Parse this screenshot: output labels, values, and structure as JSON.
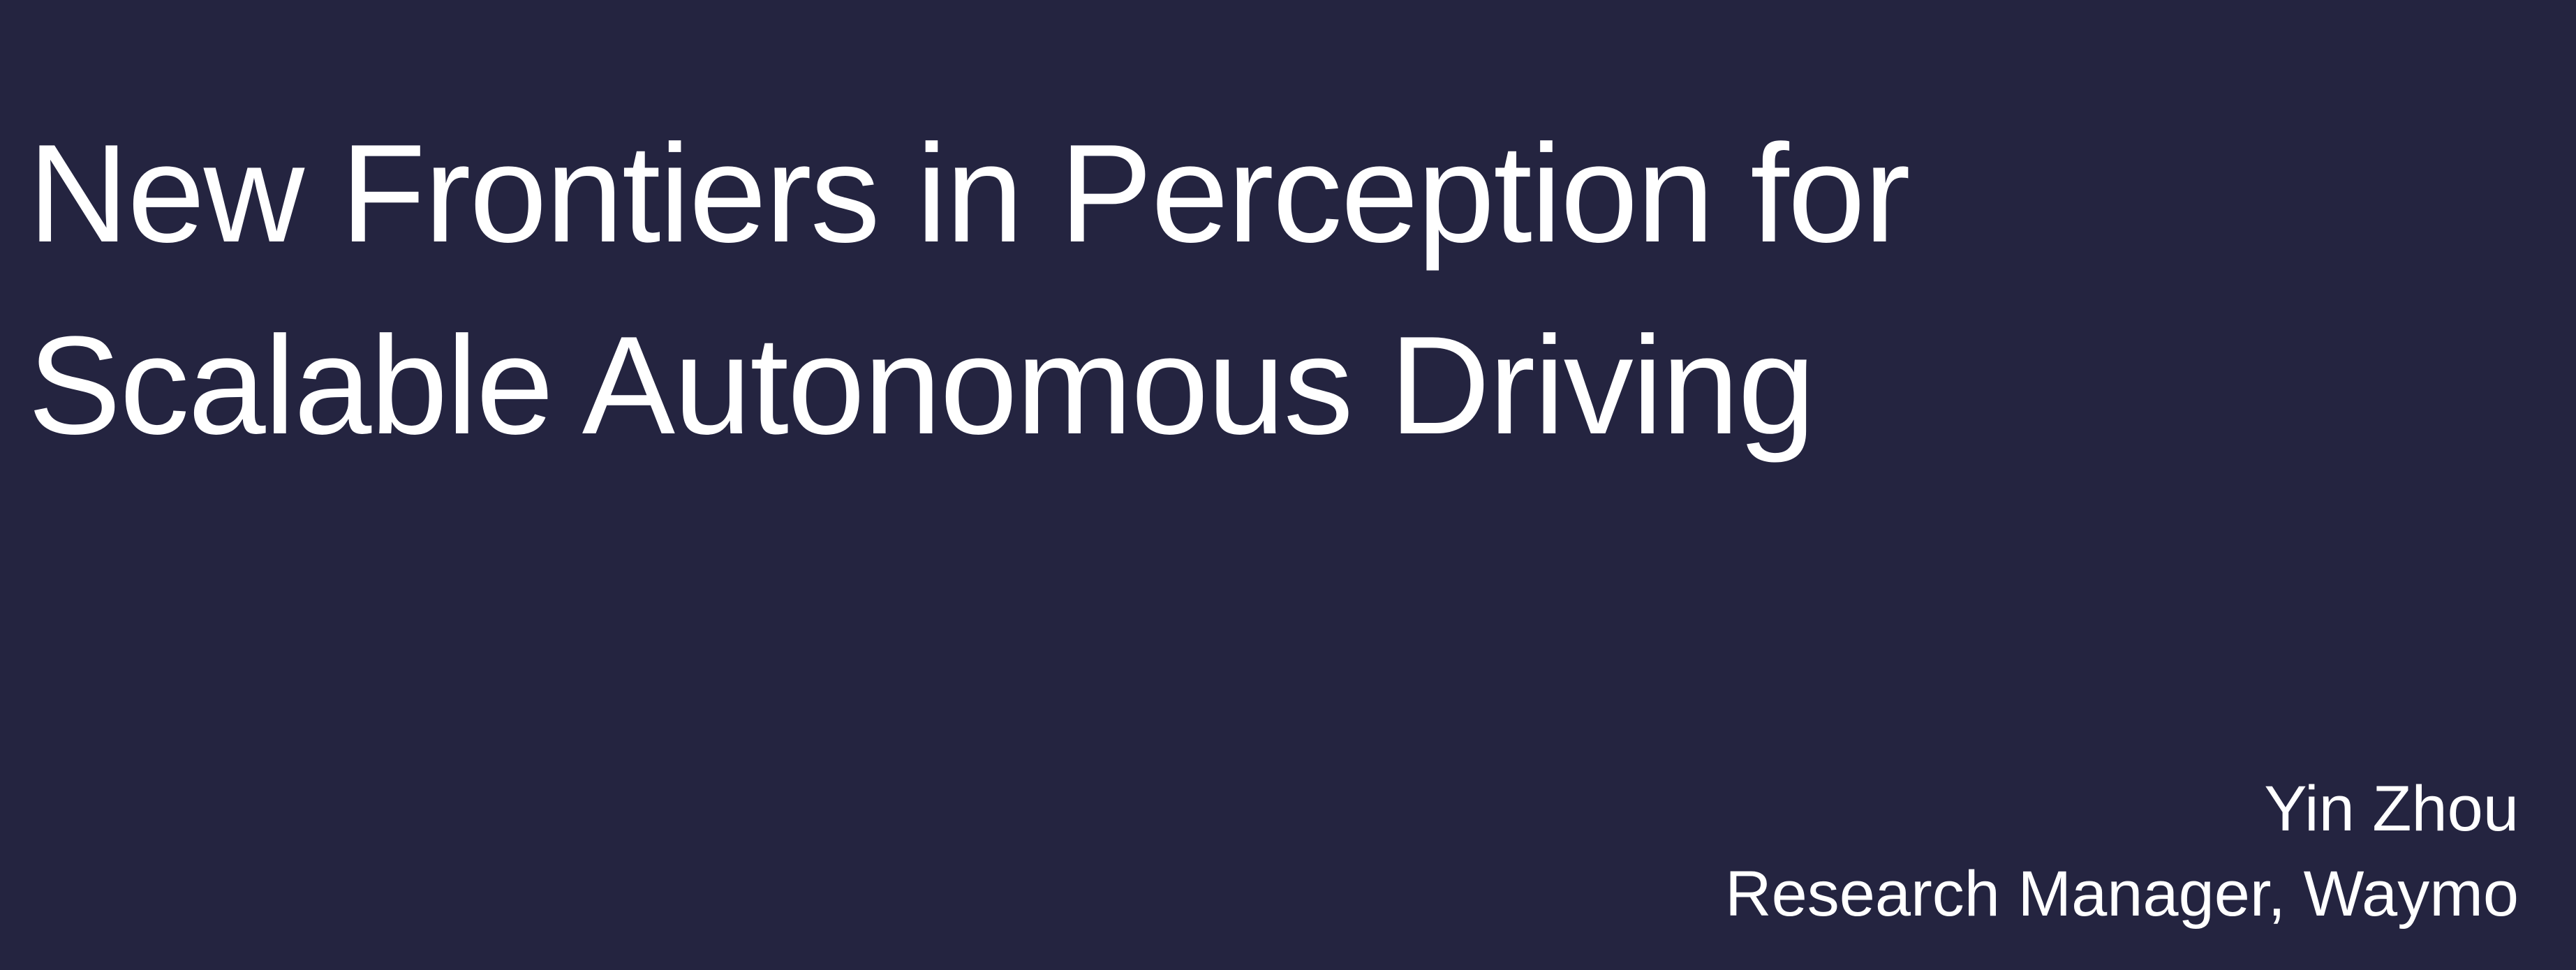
{
  "slide": {
    "title_lines": [
      "New Frontiers in Perception for",
      "Scalable Autonomous Driving"
    ],
    "presenter": {
      "name": "Yin Zhou",
      "role": "Research Manager, Waymo"
    }
  },
  "colors": {
    "background": "#242440",
    "text": "#ffffff"
  }
}
